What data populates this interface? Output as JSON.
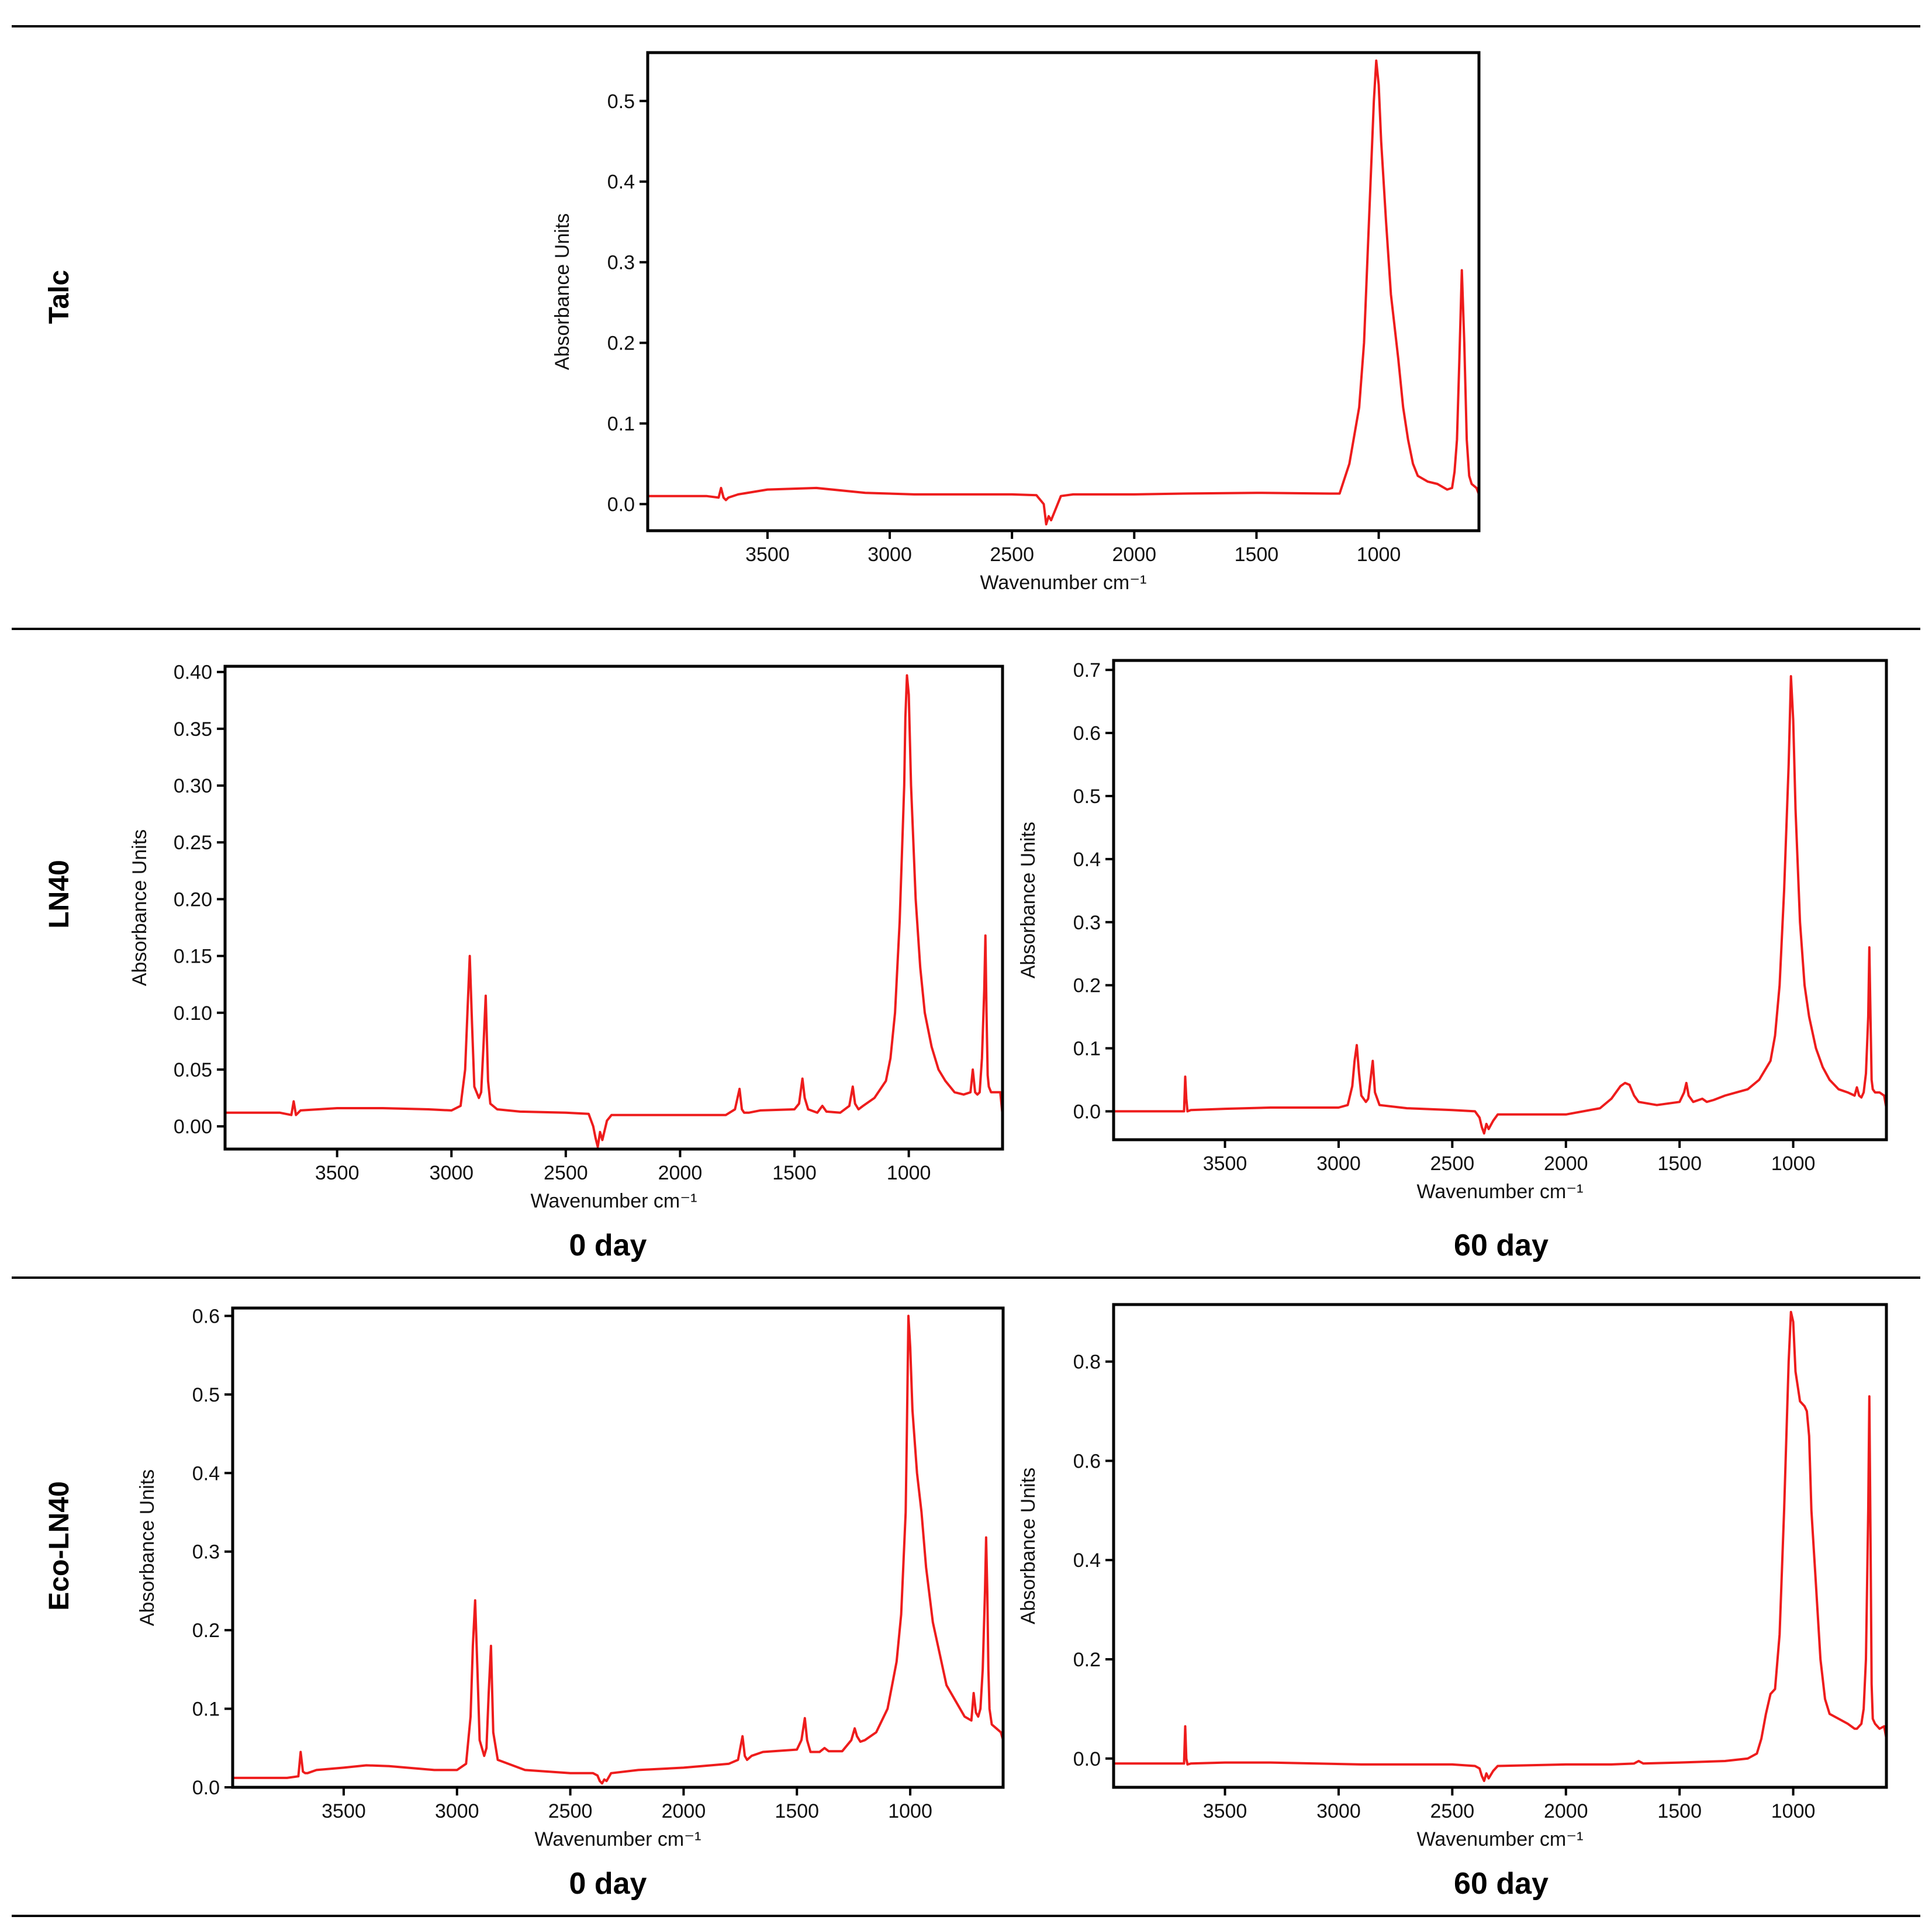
{
  "rows": [
    {
      "label": "Talc"
    },
    {
      "label": "LN40"
    },
    {
      "label": "Eco-LN40"
    }
  ],
  "captions": [
    "0 day",
    "60 day",
    "0 day",
    "60 day"
  ],
  "colors": {
    "trace": "#ee1c1c",
    "frame": "#000000"
  },
  "chart_data": [
    {
      "id": "talc",
      "type": "line",
      "row": "Talc",
      "xlabel": "Wavenumber cm⁻¹",
      "ylabel": "Absorbance Units",
      "xlim": [
        3990,
        590
      ],
      "ylim": [
        -0.033,
        0.56
      ],
      "x_reversed": true,
      "xticks": [
        3500,
        3000,
        2500,
        2000,
        1500,
        1000
      ],
      "yticks": [
        0.0,
        0.1,
        0.2,
        0.3,
        0.4,
        0.5
      ],
      "ytick_labels": [
        "0.0",
        "0.1",
        "0.2",
        "0.3",
        "0.4",
        "0.5"
      ],
      "series": [
        {
          "x": [
            3990,
            3750,
            3700,
            3690,
            3680,
            3670,
            3660,
            3620,
            3500,
            3300,
            3100,
            2900,
            2700,
            2500,
            2400,
            2370,
            2360,
            2350,
            2340,
            2320,
            2300,
            2250,
            2000,
            1800,
            1500,
            1200,
            1160,
            1120,
            1080,
            1060,
            1040,
            1020,
            1010,
            1000,
            990,
            970,
            950,
            920,
            900,
            880,
            860,
            840,
            800,
            760,
            720,
            700,
            690,
            680,
            670,
            660,
            650,
            640,
            630,
            620,
            600,
            590
          ],
          "y": [
            0.01,
            0.01,
            0.008,
            0.02,
            0.008,
            0.005,
            0.008,
            0.012,
            0.018,
            0.02,
            0.014,
            0.012,
            0.012,
            0.012,
            0.011,
            0.0,
            -0.025,
            -0.015,
            -0.02,
            -0.005,
            0.01,
            0.012,
            0.012,
            0.013,
            0.014,
            0.013,
            0.013,
            0.05,
            0.12,
            0.2,
            0.35,
            0.5,
            0.55,
            0.52,
            0.45,
            0.35,
            0.26,
            0.18,
            0.12,
            0.08,
            0.05,
            0.035,
            0.028,
            0.025,
            0.018,
            0.02,
            0.04,
            0.08,
            0.18,
            0.29,
            0.2,
            0.08,
            0.035,
            0.025,
            0.02,
            0.012
          ]
        }
      ]
    },
    {
      "id": "ln40-0",
      "type": "line",
      "row": "LN40",
      "xlabel": "Wavenumber cm⁻¹",
      "ylabel": "Absorbance Units",
      "xlim": [
        3990,
        590
      ],
      "ylim": [
        -0.02,
        0.405
      ],
      "x_reversed": true,
      "xticks": [
        3500,
        3000,
        2500,
        2000,
        1500,
        1000
      ],
      "yticks": [
        0.0,
        0.05,
        0.1,
        0.15,
        0.2,
        0.25,
        0.3,
        0.35,
        0.4
      ],
      "ytick_labels": [
        "0.00",
        "0.05",
        "0.10",
        "0.15",
        "0.20",
        "0.25",
        "0.30",
        "0.35",
        "0.40"
      ],
      "series": [
        {
          "x": [
            3990,
            3750,
            3700,
            3690,
            3680,
            3670,
            3660,
            3500,
            3300,
            3100,
            3000,
            2960,
            2940,
            2930,
            2920,
            2910,
            2900,
            2880,
            2870,
            2860,
            2850,
            2840,
            2830,
            2800,
            2700,
            2500,
            2400,
            2380,
            2370,
            2360,
            2350,
            2340,
            2320,
            2300,
            2000,
            1800,
            1760,
            1740,
            1730,
            1720,
            1700,
            1650,
            1500,
            1480,
            1465,
            1455,
            1440,
            1400,
            1378,
            1360,
            1300,
            1260,
            1245,
            1235,
            1220,
            1200,
            1150,
            1100,
            1080,
            1060,
            1040,
            1020,
            1015,
            1008,
            1000,
            990,
            970,
            950,
            930,
            900,
            870,
            840,
            800,
            760,
            730,
            720,
            710,
            700,
            690,
            680,
            670,
            665,
            660,
            655,
            650,
            640,
            620,
            600,
            590
          ],
          "y": [
            0.012,
            0.012,
            0.01,
            0.022,
            0.01,
            0.012,
            0.014,
            0.016,
            0.016,
            0.015,
            0.014,
            0.018,
            0.05,
            0.1,
            0.15,
            0.09,
            0.035,
            0.025,
            0.03,
            0.07,
            0.115,
            0.04,
            0.02,
            0.015,
            0.013,
            0.012,
            0.011,
            0.0,
            -0.01,
            -0.018,
            -0.005,
            -0.012,
            0.005,
            0.01,
            0.01,
            0.01,
            0.015,
            0.033,
            0.015,
            0.012,
            0.012,
            0.014,
            0.015,
            0.02,
            0.042,
            0.025,
            0.015,
            0.012,
            0.018,
            0.013,
            0.012,
            0.018,
            0.035,
            0.02,
            0.015,
            0.018,
            0.025,
            0.04,
            0.06,
            0.1,
            0.18,
            0.3,
            0.36,
            0.397,
            0.38,
            0.3,
            0.2,
            0.14,
            0.1,
            0.07,
            0.05,
            0.04,
            0.03,
            0.028,
            0.03,
            0.05,
            0.03,
            0.028,
            0.03,
            0.06,
            0.12,
            0.168,
            0.1,
            0.045,
            0.035,
            0.03,
            0.03,
            0.03,
            0.01
          ]
        }
      ]
    },
    {
      "id": "ln40-60",
      "type": "line",
      "row": "LN40",
      "caption": "60 day",
      "xlabel": "Wavenumber cm⁻¹",
      "ylabel": "Absorbance Units",
      "xlim": [
        3990,
        590
      ],
      "ylim": [
        -0.045,
        0.715
      ],
      "x_reversed": true,
      "xticks": [
        3500,
        3000,
        2500,
        2000,
        1500,
        1000
      ],
      "yticks": [
        0.0,
        0.1,
        0.2,
        0.3,
        0.4,
        0.5,
        0.6,
        0.7
      ],
      "ytick_labels": [
        "0.0",
        "0.1",
        "0.2",
        "0.3",
        "0.4",
        "0.5",
        "0.6",
        "0.7"
      ],
      "series": [
        {
          "x": [
            3990,
            3700,
            3680,
            3675,
            3670,
            3665,
            3650,
            3500,
            3300,
            3100,
            3000,
            2960,
            2940,
            2930,
            2920,
            2910,
            2900,
            2880,
            2870,
            2860,
            2850,
            2840,
            2820,
            2700,
            2500,
            2400,
            2380,
            2370,
            2360,
            2350,
            2340,
            2320,
            2300,
            2000,
            1850,
            1800,
            1760,
            1740,
            1720,
            1700,
            1680,
            1600,
            1500,
            1480,
            1470,
            1460,
            1440,
            1400,
            1380,
            1350,
            1300,
            1250,
            1200,
            1150,
            1100,
            1080,
            1060,
            1040,
            1020,
            1010,
            1000,
            990,
            970,
            950,
            930,
            900,
            870,
            840,
            800,
            760,
            730,
            720,
            710,
            700,
            690,
            680,
            670,
            665,
            660,
            655,
            650,
            640,
            620,
            600,
            590
          ],
          "y": [
            0.0,
            0.0,
            0.0,
            0.055,
            0.02,
            0.0,
            0.002,
            0.004,
            0.006,
            0.006,
            0.006,
            0.01,
            0.04,
            0.08,
            0.105,
            0.06,
            0.025,
            0.015,
            0.02,
            0.05,
            0.08,
            0.03,
            0.01,
            0.005,
            0.002,
            0.0,
            -0.01,
            -0.025,
            -0.035,
            -0.02,
            -0.028,
            -0.015,
            -0.005,
            -0.005,
            0.005,
            0.02,
            0.04,
            0.045,
            0.042,
            0.025,
            0.015,
            0.01,
            0.015,
            0.03,
            0.045,
            0.025,
            0.015,
            0.02,
            0.015,
            0.018,
            0.025,
            0.03,
            0.035,
            0.05,
            0.08,
            0.12,
            0.2,
            0.35,
            0.55,
            0.69,
            0.62,
            0.48,
            0.3,
            0.2,
            0.15,
            0.1,
            0.07,
            0.05,
            0.035,
            0.03,
            0.025,
            0.038,
            0.025,
            0.022,
            0.03,
            0.06,
            0.15,
            0.26,
            0.15,
            0.05,
            0.035,
            0.03,
            0.03,
            0.025,
            0.005
          ]
        }
      ]
    },
    {
      "id": "eco-ln40-0",
      "type": "line",
      "row": "Eco-LN40",
      "xlabel": "Wavenumber cm⁻¹",
      "ylabel": "Absorbance Units",
      "xlim": [
        3990,
        590
      ],
      "ylim": [
        0.0,
        0.61
      ],
      "x_reversed": true,
      "xticks": [
        3500,
        3000,
        2500,
        2000,
        1500,
        1000
      ],
      "yticks": [
        0.0,
        0.1,
        0.2,
        0.3,
        0.4,
        0.5,
        0.6
      ],
      "ytick_labels": [
        "0.0",
        "0.1",
        "0.2",
        "0.3",
        "0.4",
        "0.5",
        "0.6"
      ],
      "series": [
        {
          "x": [
            3990,
            3750,
            3700,
            3690,
            3680,
            3670,
            3660,
            3620,
            3500,
            3400,
            3300,
            3100,
            3000,
            2960,
            2940,
            2930,
            2920,
            2910,
            2900,
            2880,
            2870,
            2860,
            2850,
            2840,
            2820,
            2700,
            2500,
            2400,
            2380,
            2370,
            2360,
            2350,
            2340,
            2320,
            2200,
            2000,
            1800,
            1760,
            1740,
            1730,
            1720,
            1700,
            1650,
            1500,
            1480,
            1465,
            1455,
            1440,
            1400,
            1378,
            1360,
            1300,
            1260,
            1245,
            1235,
            1220,
            1200,
            1150,
            1100,
            1080,
            1060,
            1040,
            1020,
            1015,
            1008,
            1000,
            990,
            970,
            950,
            930,
            900,
            870,
            840,
            800,
            760,
            730,
            720,
            710,
            700,
            690,
            680,
            670,
            665,
            660,
            655,
            650,
            640,
            620,
            600,
            590
          ],
          "y": [
            0.012,
            0.012,
            0.014,
            0.045,
            0.02,
            0.018,
            0.018,
            0.022,
            0.025,
            0.028,
            0.027,
            0.022,
            0.022,
            0.03,
            0.09,
            0.18,
            0.238,
            0.15,
            0.06,
            0.04,
            0.05,
            0.12,
            0.18,
            0.07,
            0.035,
            0.022,
            0.018,
            0.018,
            0.015,
            0.008,
            0.005,
            0.01,
            0.008,
            0.018,
            0.022,
            0.025,
            0.03,
            0.035,
            0.065,
            0.04,
            0.035,
            0.04,
            0.045,
            0.048,
            0.06,
            0.088,
            0.06,
            0.045,
            0.045,
            0.05,
            0.046,
            0.046,
            0.06,
            0.075,
            0.065,
            0.058,
            0.06,
            0.07,
            0.1,
            0.13,
            0.16,
            0.22,
            0.35,
            0.45,
            0.6,
            0.56,
            0.48,
            0.4,
            0.35,
            0.28,
            0.21,
            0.17,
            0.13,
            0.11,
            0.09,
            0.085,
            0.12,
            0.095,
            0.09,
            0.1,
            0.15,
            0.25,
            0.318,
            0.25,
            0.15,
            0.1,
            0.08,
            0.075,
            0.07,
            0.06
          ]
        }
      ]
    },
    {
      "id": "eco-ln40-60",
      "type": "line",
      "row": "Eco-LN40",
      "xlabel": "Wavenumber cm⁻¹",
      "ylabel": "Absorbance Units",
      "xlim": [
        3990,
        590
      ],
      "ylim": [
        -0.058,
        0.915
      ],
      "x_reversed": true,
      "xticks": [
        3500,
        3000,
        2500,
        2000,
        1500,
        1000
      ],
      "yticks": [
        0.0,
        0.2,
        0.4,
        0.6,
        0.8
      ],
      "ytick_labels": [
        "0.0",
        "0.2",
        "0.4",
        "0.6",
        "0.8"
      ],
      "series": [
        {
          "x": [
            3990,
            3700,
            3680,
            3675,
            3670,
            3665,
            3650,
            3500,
            3300,
            3100,
            2900,
            2700,
            2500,
            2400,
            2380,
            2370,
            2360,
            2350,
            2340,
            2320,
            2300,
            2000,
            1800,
            1700,
            1680,
            1660,
            1500,
            1300,
            1200,
            1160,
            1140,
            1120,
            1100,
            1080,
            1060,
            1040,
            1020,
            1010,
            1000,
            990,
            970,
            950,
            940,
            930,
            920,
            900,
            880,
            860,
            840,
            800,
            760,
            730,
            720,
            700,
            690,
            680,
            670,
            665,
            660,
            655,
            650,
            640,
            620,
            600,
            590
          ],
          "y": [
            -0.01,
            -0.01,
            -0.01,
            0.065,
            0.0,
            -0.012,
            -0.01,
            -0.008,
            -0.008,
            -0.01,
            -0.012,
            -0.012,
            -0.012,
            -0.015,
            -0.02,
            -0.035,
            -0.045,
            -0.03,
            -0.04,
            -0.025,
            -0.015,
            -0.012,
            -0.012,
            -0.01,
            -0.005,
            -0.01,
            -0.008,
            -0.005,
            0.0,
            0.01,
            0.04,
            0.09,
            0.13,
            0.14,
            0.25,
            0.5,
            0.8,
            0.9,
            0.88,
            0.78,
            0.72,
            0.71,
            0.7,
            0.65,
            0.5,
            0.35,
            0.2,
            0.12,
            0.09,
            0.08,
            0.07,
            0.06,
            0.06,
            0.07,
            0.1,
            0.2,
            0.5,
            0.73,
            0.45,
            0.15,
            0.08,
            0.07,
            0.06,
            0.065,
            0.04
          ]
        }
      ]
    }
  ]
}
